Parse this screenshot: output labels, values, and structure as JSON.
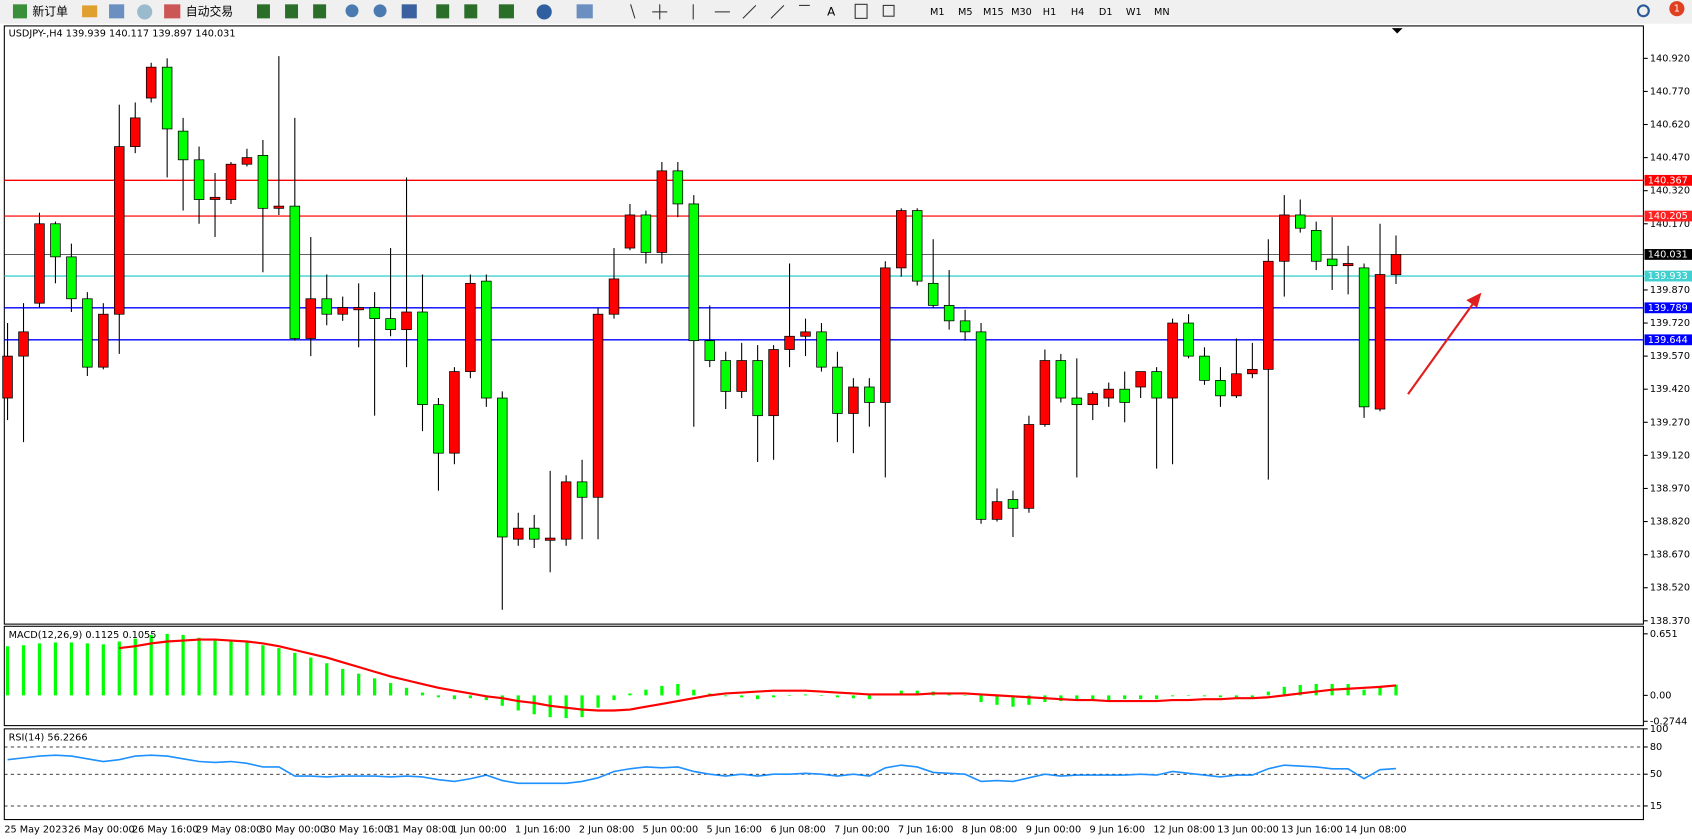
{
  "toolbar": {
    "buttons": [
      "新订单",
      "自动交易"
    ],
    "timeframes": [
      "M1",
      "M5",
      "M15",
      "M30",
      "H1",
      "H4",
      "D1",
      "W1",
      "MN"
    ],
    "notification_count": "1"
  },
  "chart_data": [
    {
      "type": "candlestick",
      "title": "USDJPY-,H4  139.939 140.117 139.897 140.031",
      "up_color": "#ff0000",
      "down_color": "#00ff00",
      "categories": [
        "25 May 2023",
        null,
        null,
        null,
        "26 May 00:00",
        null,
        null,
        null,
        "26 May 16:00",
        null,
        null,
        null,
        "29 May 08:00",
        null,
        null,
        null,
        "30 May 00:00",
        null,
        null,
        null,
        "30 May 16:00",
        null,
        null,
        null,
        "31 May 08:00",
        null,
        null,
        null,
        "1 Jun 00:00",
        null,
        null,
        null,
        "1 Jun 16:00",
        null,
        null,
        null,
        "2 Jun 08:00",
        null,
        null,
        null,
        "5 Jun 00:00",
        null,
        null,
        null,
        "5 Jun 16:00",
        null,
        null,
        null,
        "6 Jun 08:00",
        null,
        null,
        null,
        "7 Jun 00:00",
        null,
        null,
        null,
        "7 Jun 16:00",
        null,
        null,
        null,
        "8 Jun 08:00",
        null,
        null,
        null,
        "9 Jun 00:00",
        null,
        null,
        null,
        "9 Jun 16:00",
        null,
        null,
        null,
        "12 Jun 08:00",
        null,
        null,
        null,
        "13 Jun 00:00",
        null,
        null,
        null,
        "13 Jun 16:00",
        null,
        null,
        null,
        "14 Jun 08:00",
        null,
        null,
        null
      ],
      "open": [
        139.38,
        139.57,
        139.81,
        140.17,
        140.02,
        139.83,
        139.52,
        139.76,
        140.52,
        140.74,
        140.88,
        140.59,
        140.46,
        140.28,
        140.28,
        140.44,
        140.48,
        140.24,
        140.25,
        139.65,
        139.83,
        139.76,
        139.78,
        139.79,
        139.74,
        139.69,
        139.77,
        139.35,
        139.13,
        139.5,
        139.91,
        139.38,
        138.74,
        138.79,
        138.735,
        138.74,
        139.0,
        138.93,
        139.76,
        140.06,
        140.21,
        140.04,
        140.41,
        140.26,
        139.64,
        139.55,
        139.41,
        139.55,
        139.3,
        139.6,
        139.66,
        139.68,
        139.52,
        139.31,
        139.43,
        139.36,
        139.97,
        140.23,
        139.9,
        139.8,
        139.73,
        139.68,
        138.83,
        138.92,
        138.88,
        139.26,
        139.55,
        139.38,
        139.35,
        139.38,
        139.42,
        139.43,
        139.5,
        139.38,
        139.72,
        139.57,
        139.46,
        139.39,
        139.49,
        139.51,
        140.0,
        140.21,
        140.14,
        140.01,
        139.98,
        139.97,
        139.33,
        139.939
      ],
      "high": [
        139.72,
        139.81,
        140.22,
        140.18,
        140.08,
        139.86,
        139.81,
        140.71,
        140.72,
        140.9,
        140.92,
        140.65,
        140.52,
        140.4,
        140.45,
        140.51,
        140.55,
        140.93,
        140.65,
        140.11,
        139.94,
        139.84,
        139.9,
        139.86,
        140.06,
        140.38,
        139.94,
        139.38,
        139.52,
        139.94,
        139.94,
        139.41,
        138.86,
        138.85,
        139.05,
        139.03,
        139.1,
        139.79,
        140.06,
        140.26,
        140.23,
        140.45,
        140.45,
        140.3,
        139.8,
        139.59,
        139.63,
        139.62,
        139.62,
        139.99,
        139.74,
        139.72,
        139.59,
        139.47,
        139.47,
        140.0,
        140.24,
        140.24,
        140.1,
        139.96,
        139.78,
        139.72,
        138.97,
        138.96,
        139.3,
        139.6,
        139.58,
        139.56,
        139.41,
        139.45,
        139.5,
        139.5,
        139.52,
        139.74,
        139.76,
        139.61,
        139.52,
        139.65,
        139.63,
        140.1,
        140.3,
        140.28,
        140.18,
        140.2,
        140.07,
        139.99,
        140.17,
        140.117
      ],
      "low": [
        139.28,
        139.18,
        139.79,
        139.9,
        139.77,
        139.48,
        139.51,
        139.58,
        140.49,
        140.72,
        140.38,
        140.23,
        140.17,
        140.11,
        140.26,
        140.43,
        139.95,
        140.21,
        139.64,
        139.57,
        139.71,
        139.73,
        139.61,
        139.3,
        139.66,
        139.52,
        139.23,
        138.96,
        139.08,
        139.47,
        139.34,
        138.42,
        138.71,
        138.7,
        138.59,
        138.71,
        138.74,
        138.74,
        139.74,
        140.05,
        139.99,
        139.99,
        140.2,
        139.25,
        139.52,
        139.33,
        139.38,
        139.09,
        139.1,
        139.52,
        139.57,
        139.5,
        139.18,
        139.13,
        139.25,
        139.02,
        139.93,
        139.89,
        139.79,
        139.69,
        139.64,
        138.81,
        138.82,
        138.75,
        138.86,
        139.25,
        139.36,
        139.02,
        139.28,
        139.34,
        139.27,
        139.38,
        139.06,
        139.08,
        139.56,
        139.44,
        139.34,
        139.38,
        139.47,
        139.01,
        139.84,
        140.13,
        139.96,
        139.87,
        139.85,
        139.29,
        139.32,
        139.897
      ],
      "close": [
        139.57,
        139.68,
        140.17,
        140.02,
        139.83,
        139.52,
        139.76,
        140.52,
        140.65,
        140.88,
        140.6,
        140.46,
        140.28,
        140.29,
        140.44,
        140.47,
        140.24,
        140.25,
        139.65,
        139.83,
        139.76,
        139.79,
        139.79,
        139.74,
        139.69,
        139.77,
        139.35,
        139.13,
        139.5,
        139.9,
        139.38,
        138.75,
        138.79,
        138.74,
        138.745,
        139.0,
        138.93,
        139.76,
        139.92,
        140.21,
        140.04,
        140.41,
        140.26,
        139.64,
        139.55,
        139.41,
        139.55,
        139.3,
        139.6,
        139.66,
        139.68,
        139.52,
        139.31,
        139.43,
        139.36,
        139.97,
        140.23,
        139.91,
        139.8,
        139.73,
        139.68,
        138.83,
        138.91,
        138.88,
        139.26,
        139.55,
        139.38,
        139.35,
        139.4,
        139.42,
        139.36,
        139.5,
        139.38,
        139.72,
        139.57,
        139.46,
        139.39,
        139.49,
        139.51,
        140.0,
        140.21,
        140.15,
        140.0,
        139.98,
        139.99,
        139.34,
        139.94,
        140.031
      ],
      "ylim": [
        138.355,
        141.067
      ],
      "yticks": [
        {
          "value": 140.92,
          "label": "140.920"
        },
        {
          "value": 140.77,
          "label": "140.770"
        },
        {
          "value": 140.62,
          "label": "140.620"
        },
        {
          "value": 140.47,
          "label": "140.470"
        },
        {
          "value": 140.32,
          "label": "140.320"
        },
        {
          "value": 140.17,
          "label": "140.170"
        },
        {
          "value": 139.87,
          "label": "139.870"
        },
        {
          "value": 139.72,
          "label": "139.720"
        },
        {
          "value": 139.57,
          "label": "139.570"
        },
        {
          "value": 139.42,
          "label": "139.420"
        },
        {
          "value": 139.27,
          "label": "139.270"
        },
        {
          "value": 139.12,
          "label": "139.120"
        },
        {
          "value": 138.97,
          "label": "138.970"
        },
        {
          "value": 138.82,
          "label": "138.820"
        },
        {
          "value": 138.67,
          "label": "138.670"
        },
        {
          "value": 138.52,
          "label": "138.520"
        },
        {
          "value": 138.37,
          "label": "138.370"
        }
      ],
      "levels": [
        {
          "value": 140.367,
          "color": "#ff0000"
        },
        {
          "value": 140.205,
          "color": "#ff2020"
        },
        {
          "value": 140.031,
          "color": "#000000"
        },
        {
          "value": 139.933,
          "color": "#40d0d0"
        },
        {
          "value": 139.789,
          "color": "#0000ff"
        },
        {
          "value": 139.644,
          "color": "#0000ff"
        }
      ]
    },
    {
      "type": "macd",
      "title": "MACD(12,26,9) 0.1125 0.1055",
      "color": "#00ff00",
      "signal_color": "#ff0000",
      "values": [
        0.52,
        0.53,
        0.55,
        0.56,
        0.56,
        0.55,
        0.54,
        0.57,
        0.6,
        0.64,
        0.65,
        0.64,
        0.61,
        0.58,
        0.57,
        0.56,
        0.53,
        0.5,
        0.45,
        0.4,
        0.34,
        0.28,
        0.23,
        0.18,
        0.13,
        0.08,
        0.03,
        -0.02,
        -0.04,
        -0.03,
        -0.05,
        -0.11,
        -0.16,
        -0.2,
        -0.23,
        -0.24,
        -0.23,
        -0.13,
        -0.05,
        0.02,
        0.06,
        0.1,
        0.12,
        0.06,
        0.02,
        -0.01,
        -0.02,
        -0.04,
        -0.02,
        0.0,
        0.01,
        0.0,
        -0.02,
        -0.03,
        -0.04,
        0.01,
        0.05,
        0.05,
        0.04,
        0.02,
        0.0,
        -0.07,
        -0.1,
        -0.12,
        -0.1,
        -0.07,
        -0.06,
        -0.06,
        -0.05,
        -0.05,
        -0.04,
        -0.04,
        -0.04,
        -0.01,
        0.0,
        -0.01,
        -0.02,
        -0.02,
        -0.02,
        0.04,
        0.09,
        0.11,
        0.12,
        0.12,
        0.12,
        0.06,
        0.09,
        0.1125
      ],
      "signal": [
        null,
        null,
        null,
        null,
        null,
        null,
        null,
        0.5,
        0.52,
        0.55,
        0.57,
        0.58,
        0.59,
        0.59,
        0.58,
        0.57,
        0.55,
        0.52,
        0.48,
        0.44,
        0.4,
        0.35,
        0.3,
        0.25,
        0.2,
        0.16,
        0.12,
        0.08,
        0.05,
        0.02,
        -0.01,
        -0.03,
        -0.06,
        -0.08,
        -0.11,
        -0.13,
        -0.15,
        -0.16,
        -0.16,
        -0.15,
        -0.12,
        -0.09,
        -0.06,
        -0.03,
        0.0,
        0.02,
        0.03,
        0.04,
        0.05,
        0.05,
        0.05,
        0.04,
        0.03,
        0.02,
        0.01,
        0.01,
        0.01,
        0.01,
        0.02,
        0.02,
        0.02,
        0.01,
        0.0,
        -0.01,
        -0.02,
        -0.03,
        -0.04,
        -0.05,
        -0.05,
        -0.06,
        -0.06,
        -0.06,
        -0.06,
        -0.05,
        -0.05,
        -0.04,
        -0.04,
        -0.03,
        -0.03,
        -0.02,
        0.0,
        0.02,
        0.04,
        0.06,
        0.07,
        0.08,
        0.09,
        0.1055
      ],
      "ylim": [
        -0.32,
        0.731
      ],
      "yticks": [
        0.651,
        {
          "value": 0,
          "label": "0.00"
        },
        -0.2744
      ]
    },
    {
      "type": "line",
      "title": "RSI(14) 56.2266",
      "color": "#1e90ff",
      "values": [
        66,
        68,
        70,
        71,
        70,
        67,
        64,
        66,
        70,
        71,
        70,
        67,
        64,
        63,
        64,
        62,
        58,
        58,
        48,
        48,
        47,
        48,
        48,
        48,
        47,
        48,
        47,
        44,
        42,
        45,
        49,
        43,
        40,
        40,
        40,
        40,
        42,
        46,
        53,
        56,
        58,
        57,
        58,
        53,
        50,
        48,
        50,
        48,
        50,
        50,
        51,
        50,
        48,
        50,
        48,
        57,
        60,
        58,
        52,
        51,
        50,
        42,
        43,
        42,
        46,
        50,
        48,
        49,
        49,
        49,
        49,
        50,
        49,
        53,
        51,
        49,
        47,
        49,
        49,
        56,
        60,
        59,
        58,
        56,
        56,
        45,
        55,
        56.2266
      ],
      "ylim": [
        0,
        100
      ],
      "yticks": [
        100,
        80,
        50,
        15
      ],
      "levels": [
        80,
        50,
        15
      ]
    }
  ]
}
